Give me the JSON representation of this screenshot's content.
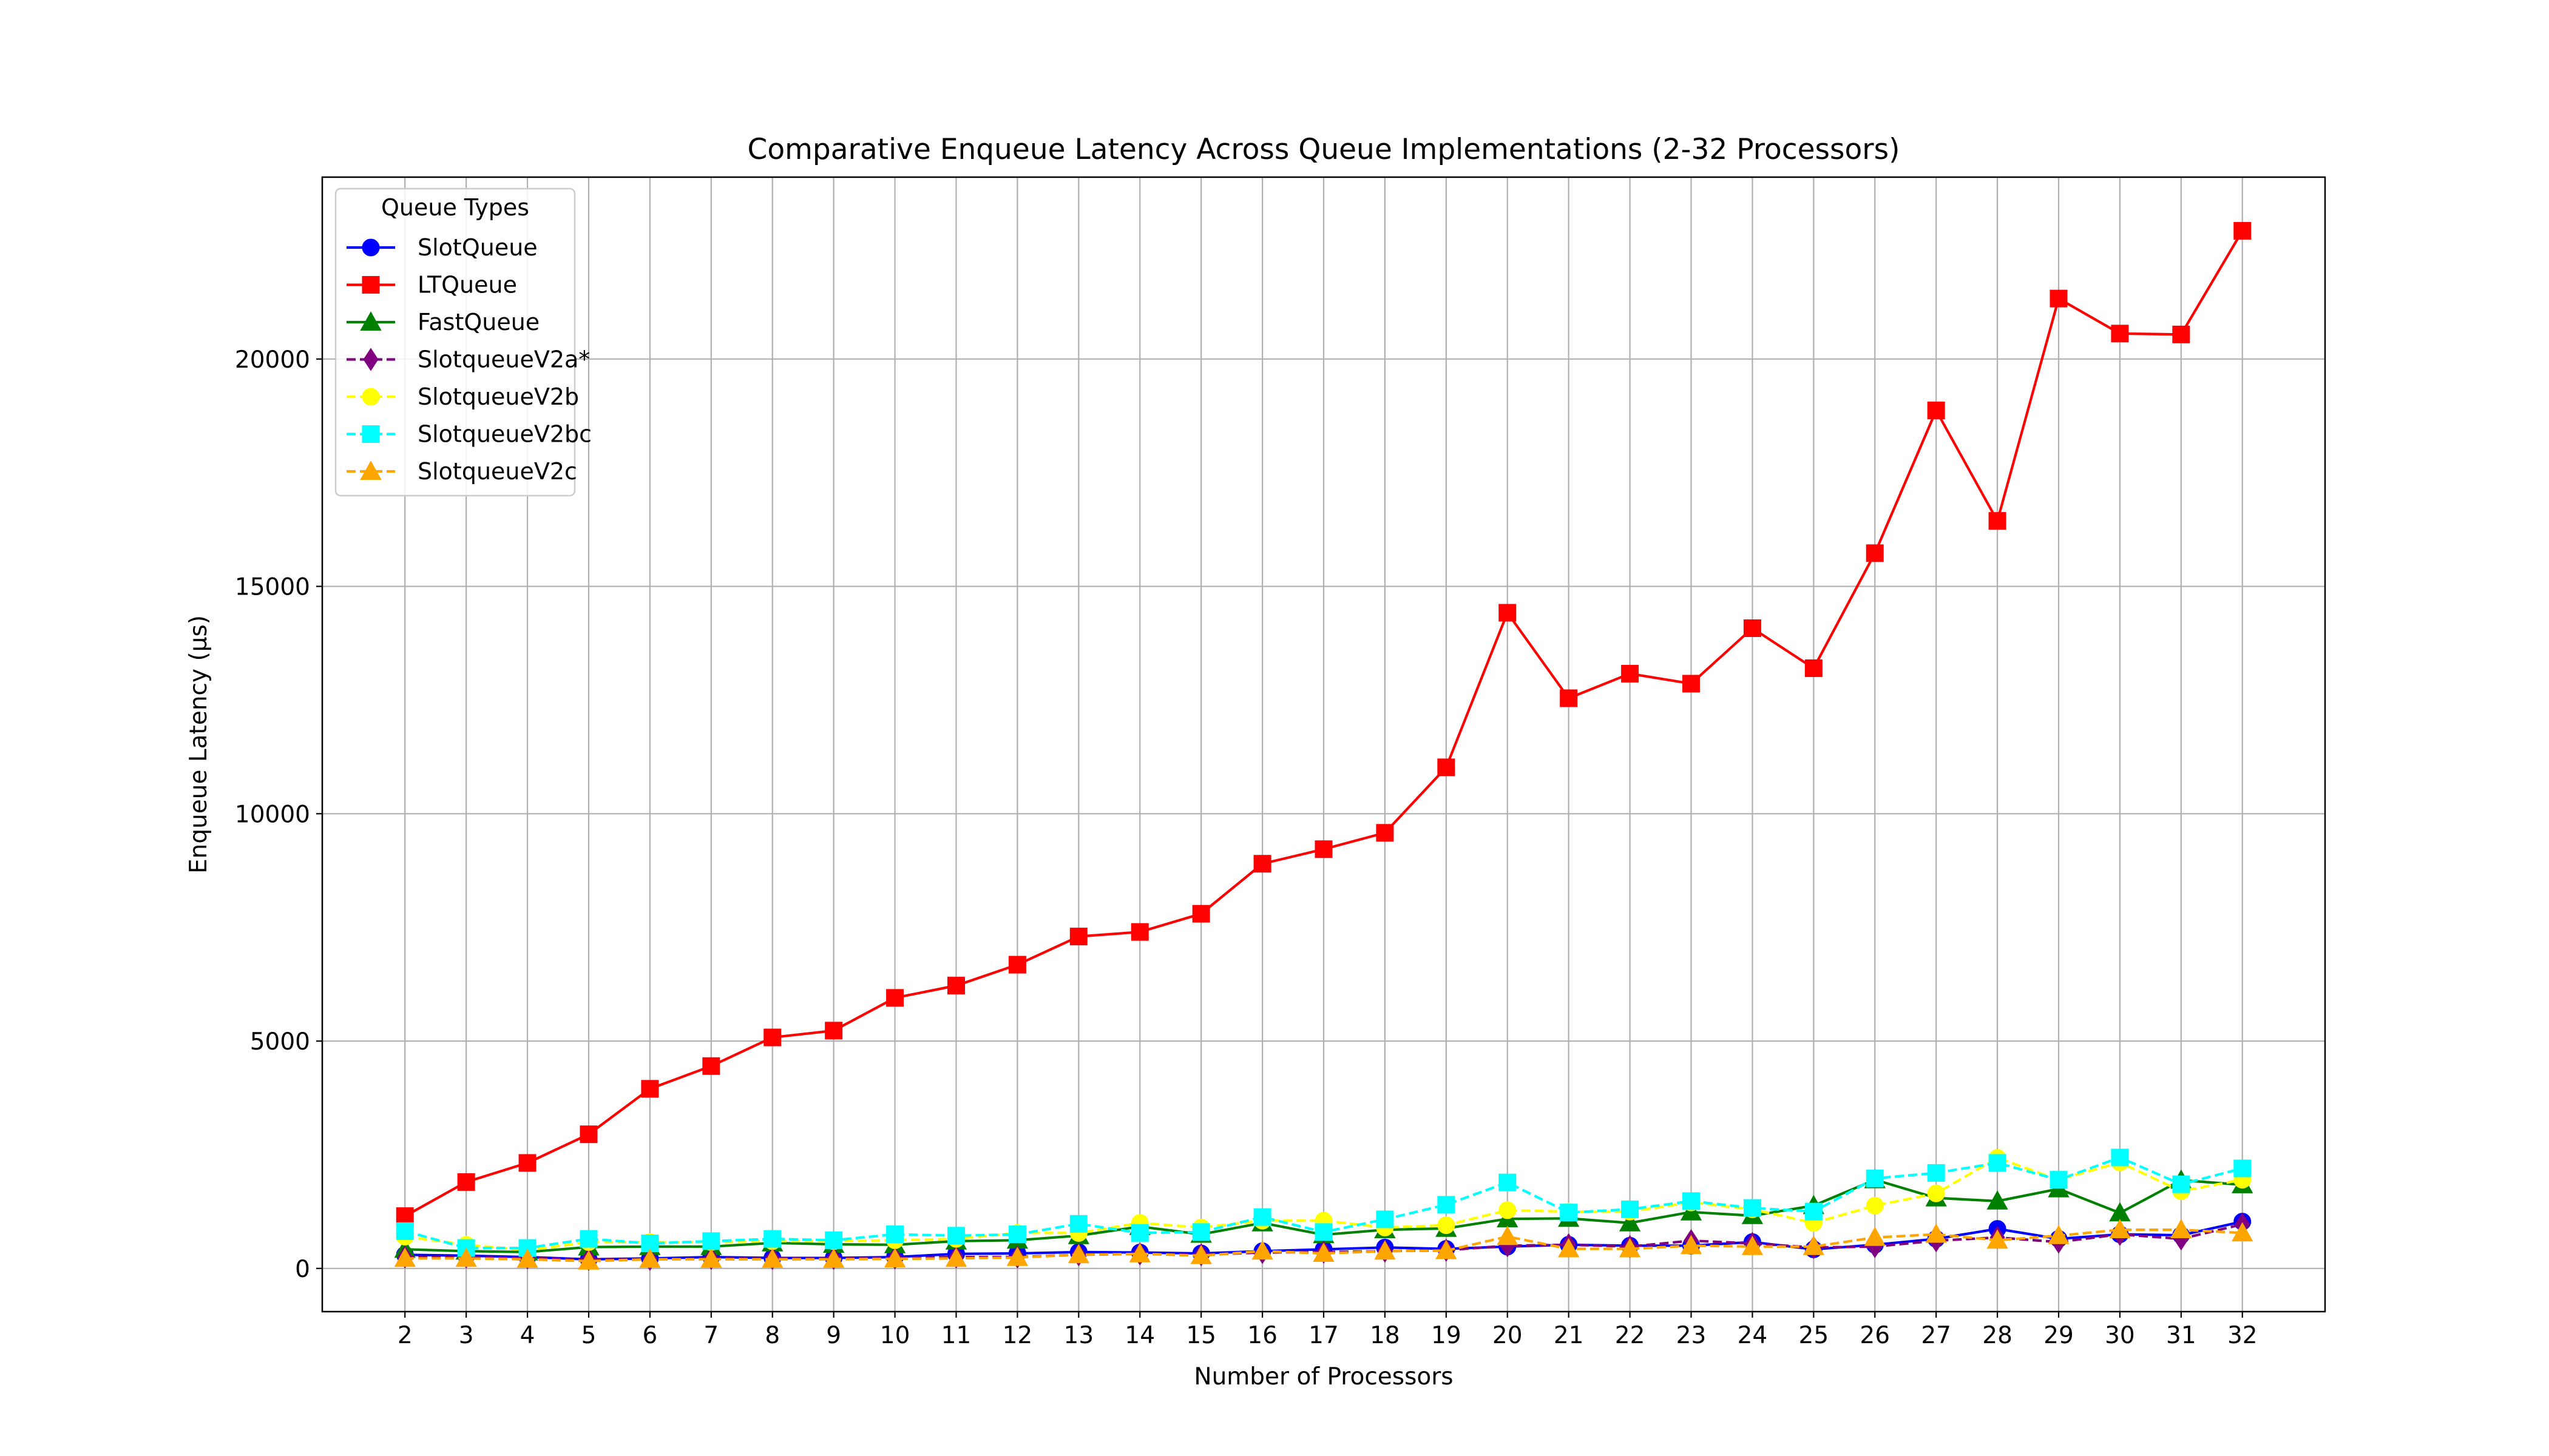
{
  "chart_data": {
    "type": "line",
    "title": "Comparative Enqueue Latency Across Queue Implementations (2-32 Processors)",
    "xlabel": "Number of Processors",
    "ylabel": "Enqueue Latency (µs)",
    "x": [
      2,
      3,
      4,
      5,
      6,
      7,
      8,
      9,
      10,
      11,
      12,
      13,
      14,
      15,
      16,
      17,
      18,
      19,
      20,
      21,
      22,
      23,
      24,
      25,
      26,
      27,
      28,
      29,
      30,
      31,
      32
    ],
    "xlim": [
      0.65,
      33.35
    ],
    "ylim": [
      -950,
      24000
    ],
    "yticks": [
      0,
      5000,
      10000,
      15000,
      20000
    ],
    "grid": true,
    "legend": {
      "title": "Queue Types",
      "placement": "top-left"
    },
    "series": [
      {
        "name": "SlotQueue",
        "color": "#0000ff",
        "marker": "circle",
        "linestyle": "solid",
        "values": [
          300,
          280,
          250,
          200,
          220,
          250,
          230,
          230,
          250,
          320,
          330,
          360,
          350,
          330,
          380,
          420,
          460,
          430,
          480,
          520,
          500,
          500,
          580,
          420,
          520,
          650,
          870,
          650,
          750,
          730,
          1030
        ]
      },
      {
        "name": "LTQueue",
        "color": "#ff0000",
        "marker": "square",
        "linestyle": "solid",
        "values": [
          1150,
          1900,
          2320,
          2950,
          3950,
          4450,
          5080,
          5230,
          5950,
          6220,
          6680,
          7300,
          7400,
          7800,
          8900,
          9220,
          9580,
          11020,
          14420,
          12540,
          13080,
          12860,
          14080,
          13200,
          15730,
          18870,
          16440,
          21330,
          20560,
          20540,
          22820
        ]
      },
      {
        "name": "FastQueue",
        "color": "#008000",
        "marker": "triangle",
        "linestyle": "solid",
        "values": [
          420,
          380,
          360,
          470,
          480,
          480,
          560,
          530,
          520,
          600,
          620,
          720,
          920,
          750,
          1000,
          740,
          850,
          880,
          1090,
          1100,
          1000,
          1240,
          1160,
          1380,
          1950,
          1550,
          1480,
          1750,
          1220,
          1940,
          1840
        ]
      },
      {
        "name": "SlotqueueV2a*",
        "color": "#800080",
        "marker": "diamond",
        "linestyle": "dashed",
        "values": [
          250,
          250,
          230,
          200,
          200,
          220,
          220,
          220,
          230,
          250,
          250,
          300,
          320,
          300,
          350,
          360,
          380,
          400,
          500,
          520,
          480,
          610,
          550,
          460,
          480,
          610,
          680,
          580,
          750,
          650,
          970
        ]
      },
      {
        "name": "SlotqueueV2b",
        "color": "#ffff00",
        "marker": "circle",
        "linestyle": "dashed",
        "values": [
          700,
          520,
          400,
          580,
          580,
          580,
          600,
          600,
          620,
          650,
          780,
          780,
          1000,
          900,
          1050,
          1050,
          900,
          950,
          1280,
          1250,
          1250,
          1450,
          1300,
          1000,
          1380,
          1650,
          2430,
          1950,
          2330,
          1700,
          1950
        ]
      },
      {
        "name": "SlotqueueV2bc",
        "color": "#00ffff",
        "marker": "square",
        "linestyle": "dashed",
        "values": [
          820,
          450,
          450,
          650,
          550,
          600,
          650,
          620,
          750,
          720,
          750,
          980,
          780,
          800,
          1130,
          800,
          1080,
          1400,
          1890,
          1230,
          1300,
          1480,
          1330,
          1250,
          1980,
          2100,
          2320,
          1950,
          2440,
          1850,
          2200
        ]
      },
      {
        "name": "SlotqueueV2c",
        "color": "#ffa500",
        "marker": "triangle",
        "linestyle": "dashed",
        "values": [
          220,
          220,
          200,
          160,
          200,
          200,
          200,
          200,
          210,
          220,
          240,
          300,
          320,
          280,
          380,
          330,
          380,
          390,
          700,
          430,
          430,
          500,
          480,
          480,
          680,
          750,
          620,
          720,
          850,
          850,
          780
        ]
      }
    ]
  }
}
